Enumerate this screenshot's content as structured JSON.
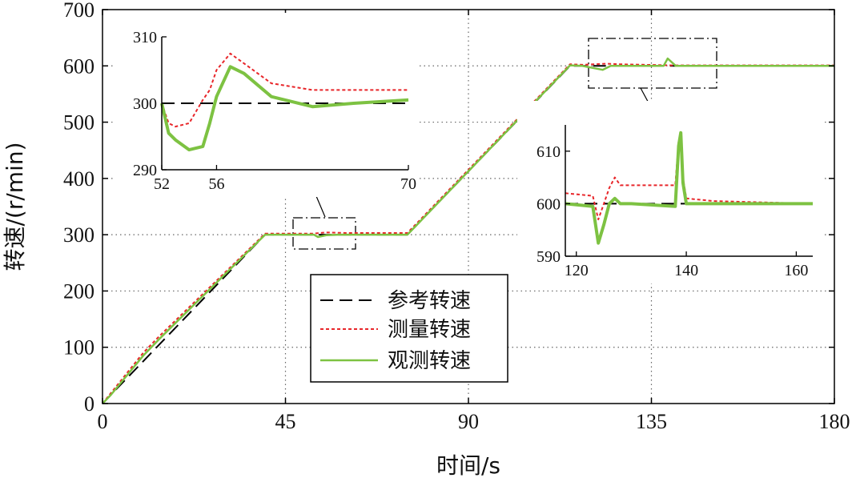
{
  "chart_data": {
    "type": "line",
    "xlabel": "时间/s",
    "ylabel": "转速/(r/min)",
    "xlim": [
      0,
      180
    ],
    "ylim": [
      0,
      700
    ],
    "xticks": [
      0,
      45,
      90,
      135,
      180
    ],
    "yticks": [
      0,
      100,
      200,
      300,
      400,
      500,
      600,
      700
    ],
    "grid": "dotted",
    "legend_position": "lower-center",
    "series": [
      {
        "name": "参考转速",
        "style": "dashed",
        "color": "#000000",
        "x": [
          0,
          40,
          75,
          115,
          180
        ],
        "y": [
          0,
          300,
          300,
          600,
          600
        ]
      },
      {
        "name": "测量转速",
        "style": "dotted",
        "color": "#e8262a",
        "x": [
          0,
          2,
          10,
          14,
          40,
          45,
          52,
          55,
          60,
          75,
          115,
          118,
          124,
          127,
          140,
          180
        ],
        "y": [
          0,
          18,
          90,
          120,
          302,
          302,
          302,
          304,
          303,
          303,
          603,
          602,
          604,
          603,
          601,
          601
        ]
      },
      {
        "name": "观测转速",
        "style": "solid",
        "color": "#7dc242",
        "x": [
          0,
          2,
          10,
          14,
          40,
          45,
          52,
          53,
          55,
          58,
          75,
          115,
          118,
          123,
          125,
          130,
          138,
          139,
          141,
          180
        ],
        "y": [
          0,
          15,
          85,
          115,
          300,
          300,
          300,
          296,
          299,
          300,
          300,
          601,
          600,
          593,
          600,
          600,
          600,
          613,
          600,
          600
        ]
      }
    ],
    "insets": [
      {
        "xlim": [
          52,
          70
        ],
        "ylim": [
          290,
          310
        ],
        "xticks": [
          "52",
          "56",
          "70"
        ],
        "yticks": [
          "290",
          "300",
          "310"
        ],
        "series": [
          {
            "name": "参考转速",
            "x": [
              52,
              70
            ],
            "y": [
              300,
              300
            ]
          },
          {
            "name": "测量转速",
            "x": [
              52,
              52.5,
              53,
              54,
              55,
              55.5,
              56,
              57,
              58,
              60,
              63,
              66,
              70
            ],
            "y": [
              300,
              297,
              296.5,
              297,
              300.5,
              302,
              305,
              307.5,
              306,
              303,
              302,
              302,
              302
            ]
          },
          {
            "name": "观测转速",
            "x": [
              52,
              52.5,
              53,
              54,
              55,
              55.5,
              56,
              57,
              58,
              60,
              63,
              66,
              70
            ],
            "y": [
              300,
              295.5,
              294.5,
              293,
              293.5,
              297,
              301,
              305.5,
              304.5,
              301,
              299.5,
              300,
              300.5
            ]
          }
        ]
      },
      {
        "xlim": [
          118,
          163
        ],
        "ylim": [
          590,
          615
        ],
        "xticks": [
          "120",
          "140",
          "160"
        ],
        "yticks": [
          "590",
          "600",
          "610"
        ],
        "series": [
          {
            "name": "参考转速",
            "x": [
              118,
              163
            ],
            "y": [
              600,
              600
            ]
          },
          {
            "name": "测量转速",
            "x": [
              118,
              123,
              124,
              125,
              126,
              127,
              128,
              130,
              138,
              138.6,
              139,
              139.4,
              140,
              145,
              163
            ],
            "y": [
              602,
              601.5,
              597,
              600,
              603,
              605,
              603.5,
              603.5,
              603.5,
              612,
              613.5,
              605,
              601,
              600.5,
              600
            ]
          },
          {
            "name": "观测转速",
            "x": [
              118,
              123,
              124,
              125,
              126,
              127,
              128,
              130,
              138,
              138.6,
              139,
              139.4,
              140,
              145,
              163
            ],
            "y": [
              600,
              599.5,
              592.5,
              596,
              600,
              601,
              600,
              600,
              599.5,
              611,
              613.5,
              604,
              600,
              600,
              600
            ]
          }
        ]
      }
    ]
  }
}
